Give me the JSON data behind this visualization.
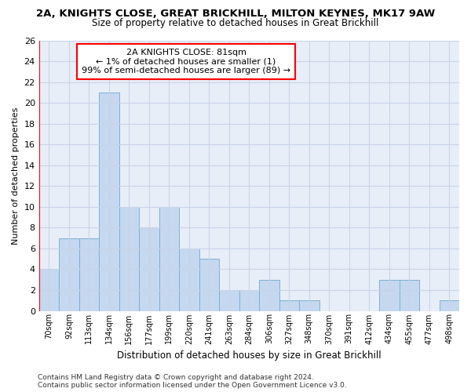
{
  "title1": "2A, KNIGHTS CLOSE, GREAT BRICKHILL, MILTON KEYNES, MK17 9AW",
  "title2": "Size of property relative to detached houses in Great Brickhill",
  "xlabel": "Distribution of detached houses by size in Great Brickhill",
  "ylabel": "Number of detached properties",
  "categories": [
    "70sqm",
    "92sqm",
    "113sqm",
    "134sqm",
    "156sqm",
    "177sqm",
    "199sqm",
    "220sqm",
    "241sqm",
    "263sqm",
    "284sqm",
    "306sqm",
    "327sqm",
    "348sqm",
    "370sqm",
    "391sqm",
    "412sqm",
    "434sqm",
    "455sqm",
    "477sqm",
    "498sqm"
  ],
  "values": [
    4,
    7,
    7,
    21,
    10,
    8,
    10,
    6,
    5,
    2,
    2,
    3,
    1,
    1,
    0,
    0,
    0,
    3,
    3,
    0,
    1
  ],
  "bar_color": "#c5d8f0",
  "bar_edge_color": "#7bafd4",
  "annotation_box_text": "2A KNIGHTS CLOSE: 81sqm\n← 1% of detached houses are smaller (1)\n99% of semi-detached houses are larger (89) →",
  "ylim": [
    0,
    26
  ],
  "yticks": [
    0,
    2,
    4,
    6,
    8,
    10,
    12,
    14,
    16,
    18,
    20,
    22,
    24,
    26
  ],
  "grid_color": "#c8d4e8",
  "bg_color": "#e8eef8",
  "footer": "Contains HM Land Registry data © Crown copyright and database right 2024.\nContains public sector information licensed under the Open Government Licence v3.0."
}
